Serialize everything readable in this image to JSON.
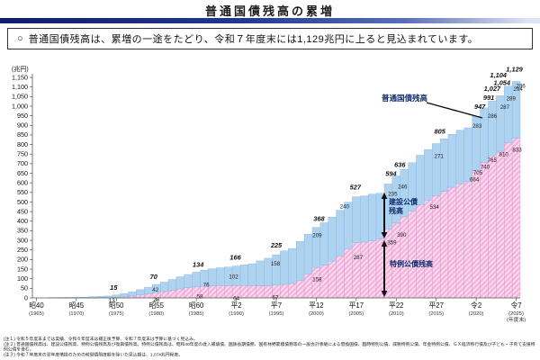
{
  "title": "普通国債残高の累増",
  "summary_box": {
    "bullet": "○",
    "text": "普通国債残高は、累増の一途をたどり、令和７年度末には1,129兆円に上ると見込まれています。"
  },
  "chart_data": {
    "type": "bar",
    "stacked": true,
    "title": "普通国債残高の累増",
    "unit_label": "(兆円)",
    "ylim": [
      0,
      1150
    ],
    "ytick_step": 50,
    "grid": false,
    "x_start_year": 1965,
    "series": [
      {
        "name": "特例公債残高",
        "color": "#f3b5de",
        "values": [
          0.2,
          0,
          0,
          0,
          0,
          0,
          0,
          0,
          0,
          0,
          2,
          6,
          10,
          15,
          21,
          28,
          33,
          40,
          47,
          53,
          58,
          61,
          63,
          64,
          64,
          64,
          65,
          64,
          63,
          62,
          67,
          70,
          75,
          90,
          125,
          158,
          171,
          192,
          219,
          257,
          287,
          291,
          297,
          308,
          359,
          390,
          423,
          452,
          486,
          510,
          534,
          556,
          577,
          596,
          606,
          664,
          705,
          740,
          765,
          810,
          833
        ]
      },
      {
        "name": "普通国債残高(合計)",
        "color": "#aed3f0",
        "values": [
          0.2,
          0.9,
          1.5,
          2.1,
          2.5,
          2.8,
          3.9,
          5.8,
          7.6,
          9.7,
          15,
          22,
          32,
          43,
          56,
          70,
          82,
          96,
          110,
          122,
          134,
          145,
          152,
          157,
          161,
          166,
          172,
          178,
          193,
          207,
          225,
          245,
          258,
          295,
          332,
          368,
          392,
          421,
          457,
          499,
          527,
          532,
          541,
          546,
          594,
          636,
          670,
          705,
          744,
          774,
          805,
          830,
          853,
          874,
          887,
          947,
          991,
          1027,
          1054,
          1104,
          1129
        ]
      }
    ],
    "x_ticks": [
      {
        "era": "昭40",
        "year": "(1965)"
      },
      {
        "era": "昭45",
        "year": "(1970)"
      },
      {
        "era": "昭50",
        "year": "(1975)"
      },
      {
        "era": "昭55",
        "year": "(1980)"
      },
      {
        "era": "昭60",
        "year": "(1985)"
      },
      {
        "era": "平2",
        "year": "(1990)"
      },
      {
        "era": "平7",
        "year": "(1995)"
      },
      {
        "era": "平12",
        "year": "(2000)"
      },
      {
        "era": "平17",
        "year": "(2005)"
      },
      {
        "era": "平22",
        "year": "(2010)"
      },
      {
        "era": "平27",
        "year": "(2015)"
      },
      {
        "era": "令2",
        "year": "(2020)"
      },
      {
        "era": "令7",
        "year": "(2025)",
        "extra": "(年度末)"
      }
    ],
    "annotations": {
      "total_label": "普通国債残高",
      "construction_label_line1": "建設公債",
      "construction_label_line2": "残高",
      "special_label": "特例公債残高"
    },
    "labeled_points": [
      {
        "year": 1975,
        "total": "15",
        "construction": "13",
        "special": null,
        "t": [
          -3,
          -6
        ],
        "c": [
          -5,
          2
        ],
        "s": null
      },
      {
        "year": 1980,
        "total": "70",
        "construction": "42",
        "special": "28",
        "t": [
          -3,
          -6
        ],
        "c": [
          -1,
          2
        ],
        "s": [
          0,
          5
        ]
      },
      {
        "year": 1985,
        "total": "134",
        "construction": "76",
        "special": "58",
        "t": [
          2,
          -6
        ],
        "c": [
          11,
          10
        ],
        "s": [
          4,
          8
        ]
      },
      {
        "year": 1990,
        "total": "166",
        "construction": "102",
        "special": "64",
        "t": [
          -1,
          -7
        ],
        "c": [
          -3,
          8
        ],
        "s": [
          0,
          11
        ]
      },
      {
        "year": 1995,
        "total": "225",
        "construction": "158",
        "special": "67",
        "t": [
          0,
          -8
        ],
        "c": [
          -1,
          6
        ],
        "s": [
          -1,
          11
        ]
      },
      {
        "year": 2000,
        "total": "368",
        "construction": "209",
        "special": "158",
        "t": [
          3,
          -7
        ],
        "c": [
          1,
          5
        ],
        "s": [
          1,
          10
        ]
      },
      {
        "year": 2005,
        "total": "527",
        "construction": "240",
        "special": "287",
        "t": [
          -1,
          -8
        ],
        "c": [
          -13,
          7
        ],
        "s": [
          2,
          13
        ]
      },
      {
        "year": 2009,
        "total": "594",
        "construction": "235",
        "special": "359",
        "t": [
          3,
          -9
        ],
        "c": [
          5,
          7
        ],
        "s": [
          4,
          12
        ]
      },
      {
        "year": 2010,
        "total": "636",
        "construction": "246",
        "special": "390",
        "t": [
          4,
          -10
        ],
        "c": [
          7,
          8
        ],
        "s": [
          6,
          10
        ]
      },
      {
        "year": 2015,
        "total": "805",
        "construction": "271",
        "special": "534",
        "t": [
          4,
          -11
        ],
        "c": [
          3,
          10
        ],
        "s": [
          -2,
          10
        ]
      },
      {
        "year": 2020,
        "total": "947",
        "construction": "283",
        "special": "664",
        "t": [
          4,
          -8
        ],
        "c": [
          1,
          7
        ],
        "s": [
          -2,
          7
        ]
      },
      {
        "year": 2021,
        "total": "991",
        "construction": "286",
        "special": "705",
        "t": [
          5,
          -9
        ],
        "c": [
          9,
          5
        ],
        "s": [
          -7,
          8
        ]
      },
      {
        "year": 2022,
        "total": "1,027",
        "construction": "287",
        "special": "740",
        "t": [
          0,
          -11
        ],
        "c": [
          14,
          3
        ],
        "s": [
          -8,
          9
        ]
      },
      {
        "year": 2023,
        "total": "1,054",
        "construction": "289",
        "special": "765",
        "t": [
          2,
          -12
        ],
        "c": [
          12,
          -1
        ],
        "s": [
          -9,
          7
        ]
      },
      {
        "year": 2024,
        "total": "1,104",
        "construction": "294",
        "special": "810",
        "t": [
          -11,
          -10
        ],
        "c": [
          11,
          -1
        ],
        "s": [
          -5,
          10
        ]
      },
      {
        "year": 2025,
        "total": "1,129",
        "construction": "296",
        "special": "833",
        "t": [
          -2,
          -11
        ],
        "c": [
          5,
          1
        ],
        "s": [
          1,
          10
        ]
      }
    ]
  },
  "footnotes": [
    "(注１) 令和５年度末までは実績、令和６年度末は補正後予算、令和７年度末は予算に基づく見込み。",
    "(注２) 普通国債残高は、建設公債残高、特例公債残高及び復興債残高。特例公債残高は、昭和40年度の歳入補填債、国鉄長期債務、国有林野累積債務等の一般会計承継による借換国債、臨時特別公債、減税特例公債、年金特例公債、ＧＸ経済移行債及び子ども・子育て支援特例公債を含む。",
    "(注３) 令和７年度末の翌年度借換のための前倒債限度額を除いた見込額は、1,074兆円程度。"
  ]
}
